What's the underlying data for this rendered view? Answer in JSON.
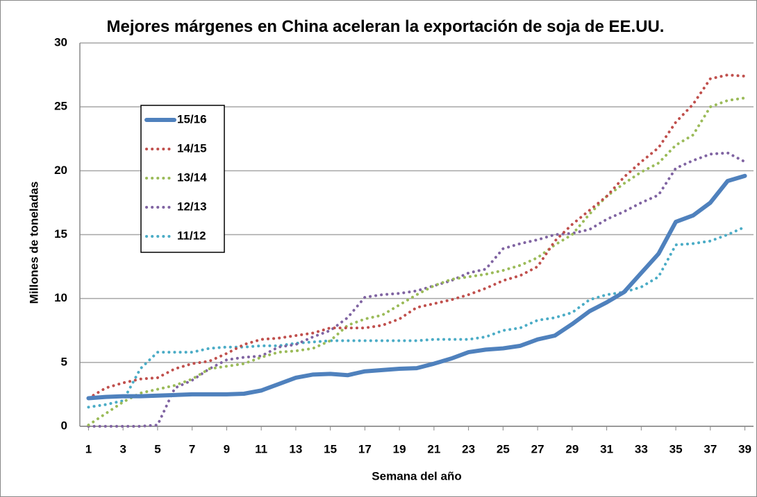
{
  "chart_data": {
    "type": "line",
    "title": "Mejores márgenes en China aceleran la exportación de soja de EE.UU.",
    "x_label": "Semana del año",
    "y_label": "Millones de toneladas",
    "x": [
      1,
      2,
      3,
      4,
      5,
      6,
      7,
      8,
      9,
      10,
      11,
      12,
      13,
      14,
      15,
      16,
      17,
      18,
      19,
      20,
      21,
      22,
      23,
      24,
      25,
      26,
      27,
      28,
      29,
      30,
      31,
      32,
      33,
      34,
      35,
      36,
      37,
      38,
      39
    ],
    "xlim": [
      0.5,
      39.5
    ],
    "xticks": [
      1,
      3,
      5,
      7,
      9,
      11,
      13,
      15,
      17,
      19,
      21,
      23,
      25,
      27,
      29,
      31,
      33,
      35,
      37,
      39
    ],
    "ylim": [
      0,
      30
    ],
    "yticks": [
      0,
      5,
      10,
      15,
      20,
      25,
      30
    ],
    "grid": true,
    "legend": "upper left",
    "series": [
      {
        "name": "15/16",
        "color": "#4f81bd",
        "style": "solid",
        "values": [
          2.2,
          2.3,
          2.35,
          2.35,
          2.4,
          2.45,
          2.5,
          2.5,
          2.5,
          2.55,
          2.8,
          3.3,
          3.8,
          4.05,
          4.1,
          4.0,
          4.3,
          4.4,
          4.5,
          4.55,
          4.9,
          5.3,
          5.8,
          6.0,
          6.1,
          6.3,
          6.8,
          7.1,
          8.0,
          9.0,
          9.7,
          10.5,
          12.0,
          13.5,
          16.0,
          16.5,
          17.5,
          19.2,
          19.6
        ]
      },
      {
        "name": "14/15",
        "color": "#c0504d",
        "style": "dotted",
        "values": [
          2.2,
          3.0,
          3.4,
          3.7,
          3.8,
          4.5,
          4.9,
          5.1,
          5.7,
          6.4,
          6.8,
          6.9,
          7.1,
          7.3,
          7.7,
          7.7,
          7.7,
          7.9,
          8.4,
          9.3,
          9.6,
          9.9,
          10.3,
          10.8,
          11.4,
          11.8,
          12.5,
          14.5,
          15.8,
          16.9,
          18.0,
          19.5,
          20.7,
          21.8,
          23.8,
          25.2,
          27.2,
          27.5,
          27.4
        ]
      },
      {
        "name": "13/14",
        "color": "#9bbb59",
        "style": "dotted",
        "values": [
          0.1,
          1.0,
          1.9,
          2.6,
          2.9,
          3.2,
          3.7,
          4.5,
          4.7,
          4.9,
          5.4,
          5.8,
          5.9,
          6.1,
          6.7,
          7.9,
          8.4,
          8.7,
          9.5,
          10.3,
          11.0,
          11.5,
          11.7,
          11.9,
          12.2,
          12.6,
          13.2,
          14.2,
          15.0,
          16.6,
          18.0,
          19.0,
          19.9,
          20.6,
          22.0,
          22.8,
          25.0,
          25.5,
          25.7
        ]
      },
      {
        "name": "12/13",
        "color": "#8064a2",
        "style": "dotted",
        "values": [
          0,
          0,
          0,
          0,
          0.1,
          3.0,
          3.6,
          4.5,
          5.2,
          5.4,
          5.5,
          6.2,
          6.4,
          7.0,
          7.5,
          8.5,
          10.1,
          10.3,
          10.4,
          10.6,
          11.0,
          11.4,
          12.0,
          12.3,
          13.9,
          14.3,
          14.6,
          15.0,
          15.1,
          15.4,
          16.2,
          16.8,
          17.5,
          18.1,
          20.2,
          20.8,
          21.3,
          21.4,
          20.7
        ]
      },
      {
        "name": "11/12",
        "color": "#4bacc6",
        "style": "dotted",
        "values": [
          1.5,
          1.7,
          2.0,
          4.5,
          5.8,
          5.8,
          5.8,
          6.1,
          6.2,
          6.2,
          6.3,
          6.3,
          6.5,
          6.6,
          6.7,
          6.7,
          6.7,
          6.7,
          6.7,
          6.7,
          6.8,
          6.8,
          6.8,
          7.0,
          7.5,
          7.7,
          8.3,
          8.5,
          8.9,
          9.9,
          10.3,
          10.5,
          10.9,
          11.7,
          14.2,
          14.3,
          14.5,
          15.0,
          15.6
        ]
      }
    ]
  }
}
